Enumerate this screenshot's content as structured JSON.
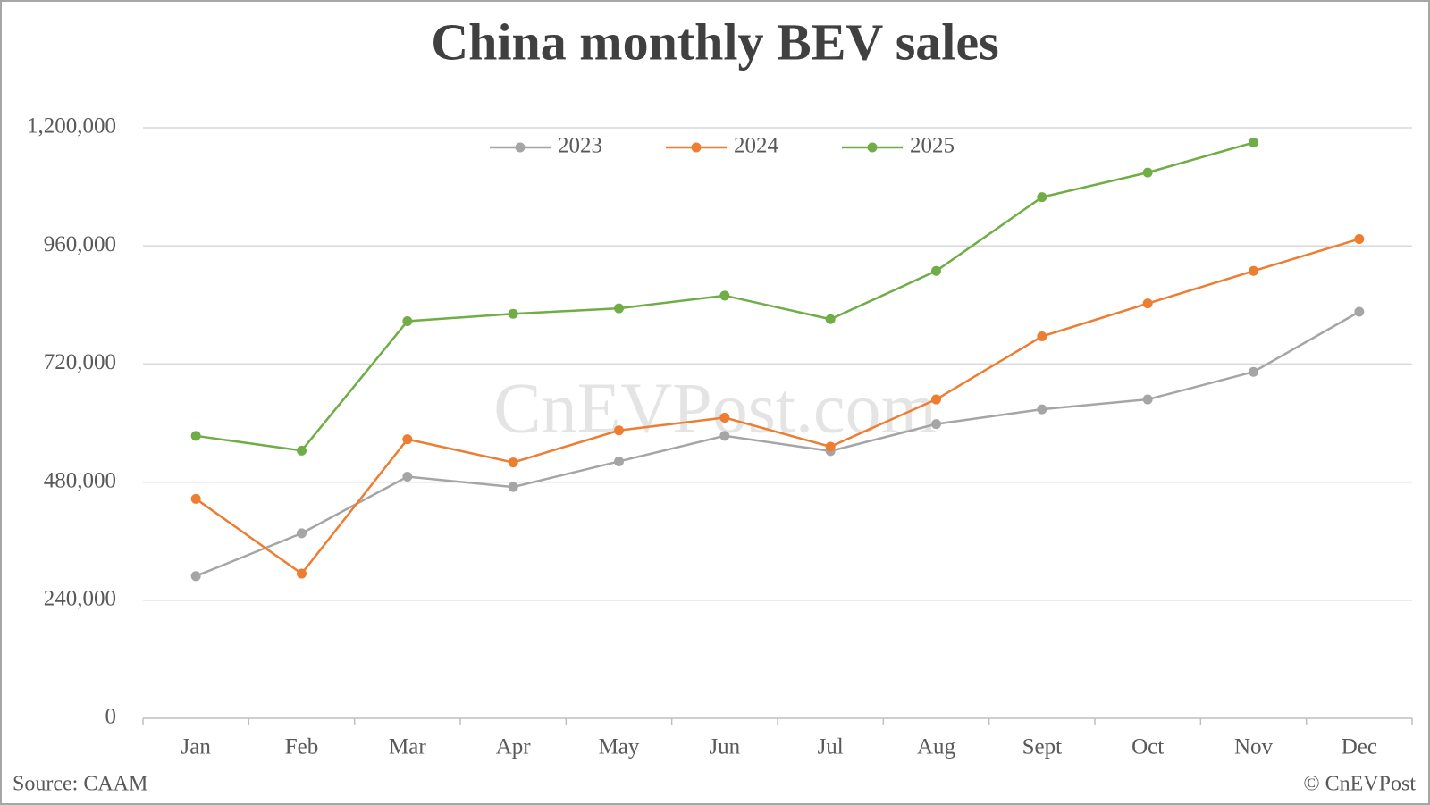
{
  "chart_data": {
    "type": "line",
    "title": "China monthly BEV sales",
    "categories": [
      "Jan",
      "Feb",
      "Mar",
      "Apr",
      "May",
      "Jun",
      "Jul",
      "Aug",
      "Sept",
      "Oct",
      "Nov",
      "Dec"
    ],
    "series": [
      {
        "name": "2023",
        "color": "#a5a5a5",
        "values": [
          289000,
          376000,
          491000,
          470000,
          522000,
          574000,
          543000,
          598000,
          628000,
          648000,
          704000,
          826000
        ]
      },
      {
        "name": "2024",
        "color": "#ed7d31",
        "values": [
          446000,
          294000,
          567000,
          520000,
          585000,
          611000,
          552000,
          648000,
          776000,
          843000,
          909000,
          974000
        ]
      },
      {
        "name": "2025",
        "color": "#70ad47",
        "values": [
          574000,
          544000,
          807000,
          822000,
          833000,
          859000,
          811000,
          909000,
          1059000,
          1109000,
          1170000,
          null
        ]
      }
    ],
    "ylim": [
      0,
      1200000
    ],
    "yticks": [
      0,
      {
        "value": 240000,
        "label": "240,000"
      },
      {
        "value": 480000,
        "label": "480,000"
      },
      {
        "value": 720000,
        "label": "720,000"
      },
      {
        "value": 960000,
        "label": "960,000"
      },
      {
        "value": 1200000,
        "label": "1,200,000"
      }
    ],
    "grid": true,
    "legend": "top",
    "watermark": "CnEVPost.com",
    "source": "Source: CAAM",
    "credit": "© CnEVPost"
  }
}
